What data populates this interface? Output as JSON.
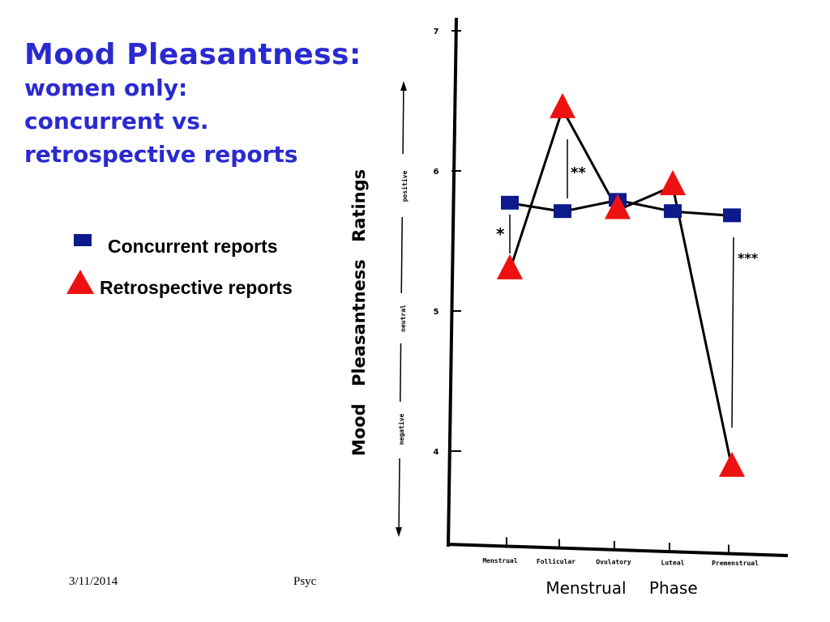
{
  "slide": {
    "title": "Mood Pleasantness:",
    "subtitle_lines": [
      "women only:",
      "concurrent vs.",
      "retrospective reports"
    ],
    "legend": {
      "concurrent": "Concurrent reports",
      "retrospective": "Retrospective reports"
    },
    "footer": {
      "date": "3/11/2014",
      "course": "Psyc"
    }
  },
  "chart_data": {
    "type": "line",
    "title": "",
    "xlabel": "Menstrual Phase",
    "ylabel": "Mood Pleasantness Ratings",
    "categories": [
      "Menstrual",
      "Follicular",
      "Ovulatory",
      "Luteal",
      "Premenstrual"
    ],
    "yticks": [
      4,
      5,
      6,
      7
    ],
    "ylim": [
      3.4,
      7.1
    ],
    "scale_anchors": [
      "negative",
      "neutral",
      "positive"
    ],
    "series": [
      {
        "name": "Concurrent reports",
        "marker": "square",
        "color": "#0d1a8c",
        "values": [
          5.77,
          5.71,
          5.79,
          5.71,
          5.68
        ]
      },
      {
        "name": "Retrospective reports",
        "marker": "triangle",
        "color": "#ee1111",
        "values": [
          5.29,
          6.44,
          5.72,
          5.89,
          3.88
        ]
      }
    ],
    "annotations": [
      "*",
      "**",
      "***"
    ],
    "grid": false
  }
}
